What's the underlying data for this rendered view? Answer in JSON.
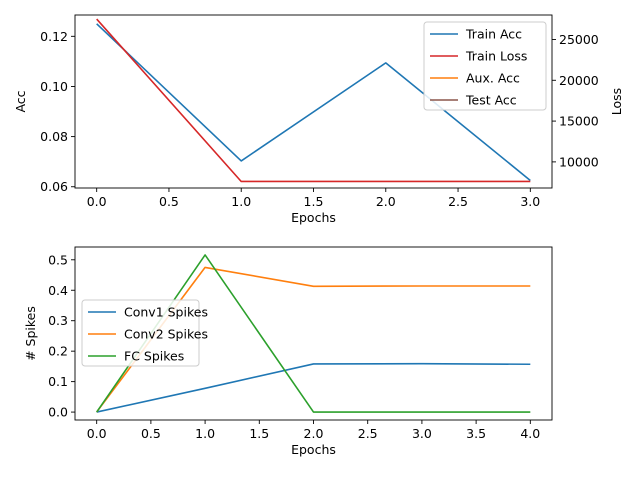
{
  "chart_data": [
    {
      "type": "line",
      "xlabel": "Epochs",
      "ylabel": "Acc",
      "y2label": "Loss",
      "xlim": [
        -0.15,
        3.15
      ],
      "ylim": [
        0.0595,
        0.1285
      ],
      "y2lim": [
        6800,
        28000
      ],
      "x_ticks": [
        0.0,
        0.5,
        1.0,
        1.5,
        2.0,
        2.5,
        3.0
      ],
      "x_tick_labels": [
        "0.0",
        "0.5",
        "1.0",
        "1.5",
        "2.0",
        "2.5",
        "3.0"
      ],
      "y_ticks": [
        0.06,
        0.08,
        0.1,
        0.12
      ],
      "y_tick_labels": [
        "0.06",
        "0.08",
        "0.10",
        "0.12"
      ],
      "y2_ticks": [
        10000,
        15000,
        20000,
        25000
      ],
      "y2_tick_labels": [
        "10000",
        "15000",
        "20000",
        "25000"
      ],
      "legend_position": "top-right",
      "series": [
        {
          "name": "Train Acc",
          "axis": "left",
          "color": "#1f77b4",
          "x": [
            0,
            1,
            2,
            3
          ],
          "values": [
            0.125,
            0.0703,
            0.1094,
            0.0625
          ]
        },
        {
          "name": "Train Loss",
          "axis": "right",
          "color": "#d62728",
          "x": [
            0,
            1,
            2,
            3
          ],
          "values": [
            27500,
            7600,
            7600,
            7600
          ]
        },
        {
          "name": "Aux. Acc",
          "axis": "right",
          "color": "#ff7f0e",
          "legend_only": true,
          "x": [],
          "values": []
        },
        {
          "name": "Test Acc",
          "axis": "right",
          "color": "#8c564b",
          "legend_only": true,
          "x": [],
          "values": []
        }
      ]
    },
    {
      "type": "line",
      "xlabel": "Epochs",
      "ylabel": "# Spikes",
      "xlim": [
        -0.2,
        4.2
      ],
      "ylim": [
        -0.026,
        0.542
      ],
      "x_ticks": [
        0.0,
        0.5,
        1.0,
        1.5,
        2.0,
        2.5,
        3.0,
        3.5,
        4.0
      ],
      "x_tick_labels": [
        "0.0",
        "0.5",
        "1.0",
        "1.5",
        "2.0",
        "2.5",
        "3.0",
        "3.5",
        "4.0"
      ],
      "y_ticks": [
        0.0,
        0.1,
        0.2,
        0.3,
        0.4,
        0.5
      ],
      "y_tick_labels": [
        "0.0",
        "0.1",
        "0.2",
        "0.3",
        "0.4",
        "0.5"
      ],
      "legend_position": "center-left",
      "series": [
        {
          "name": "Conv1 Spikes",
          "color": "#1f77b4",
          "x": [
            0,
            1,
            2,
            3,
            4
          ],
          "values": [
            0.0,
            0.078,
            0.158,
            0.159,
            0.157
          ]
        },
        {
          "name": "Conv2 Spikes",
          "color": "#ff7f0e",
          "x": [
            0,
            1,
            2,
            3,
            4
          ],
          "values": [
            0.0,
            0.475,
            0.413,
            0.414,
            0.414
          ]
        },
        {
          "name": "FC Spikes",
          "color": "#2ca02c",
          "x": [
            0,
            1,
            2,
            3,
            4
          ],
          "values": [
            0.0,
            0.516,
            0.0,
            0.0,
            0.0
          ]
        }
      ]
    }
  ]
}
